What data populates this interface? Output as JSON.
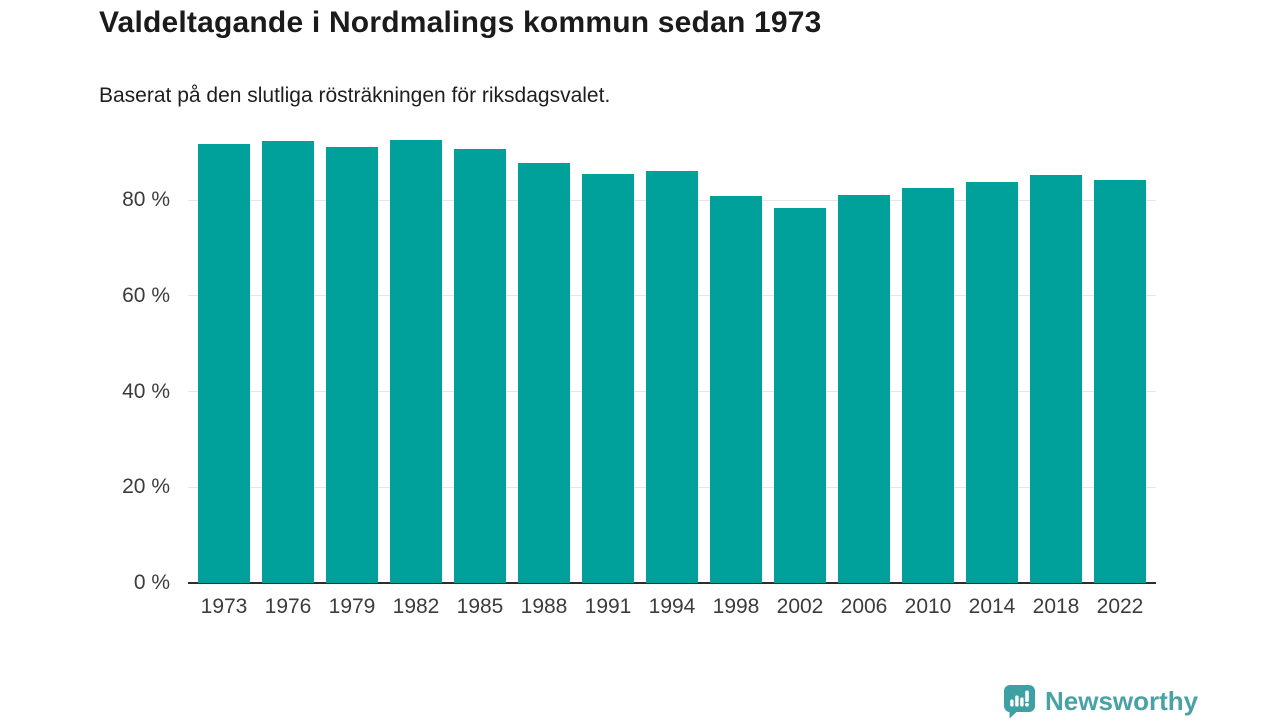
{
  "header": {
    "title": "Valdeltagande i Nordmalings kommun sedan 1973",
    "subtitle": "Baserat på den slutliga rösträkningen för riksdagsvalet."
  },
  "chart_data": {
    "type": "bar",
    "title": "Valdeltagande i Nordmalings kommun sedan 1973",
    "subtitle": "Baserat på den slutliga rösträkningen för riksdagsvalet.",
    "categories": [
      "1973",
      "1976",
      "1979",
      "1982",
      "1985",
      "1988",
      "1991",
      "1994",
      "1998",
      "2002",
      "2006",
      "2010",
      "2014",
      "2018",
      "2022"
    ],
    "values": [
      91.7,
      92.4,
      91.2,
      92.6,
      90.7,
      87.8,
      85.5,
      86.0,
      80.9,
      78.3,
      81.1,
      82.6,
      83.7,
      85.3,
      84.2
    ],
    "unit": "%",
    "xlabel": "",
    "ylabel": "",
    "ylim": [
      0,
      100
    ],
    "y_ticks": [
      {
        "value": 0,
        "label": "0 %"
      },
      {
        "value": 20,
        "label": "20 %"
      },
      {
        "value": 40,
        "label": "40 %"
      },
      {
        "value": 60,
        "label": "60 %"
      },
      {
        "value": 80,
        "label": "80 %"
      }
    ],
    "grid": "horizontal",
    "legend": "none",
    "bar_color": "#00a19b"
  },
  "colors": {
    "bar": "#00a19b",
    "title_text": "#1b1b1b",
    "axis_text": "#3c3c3c",
    "gridline": "#e7e7e7",
    "axis_line": "#2e2e2e",
    "logo": "#4aa2a6"
  },
  "footer": {
    "brand": "Newsworthy",
    "logo_icon": "newsworthy-speech-bubble-bar-chart-icon"
  }
}
